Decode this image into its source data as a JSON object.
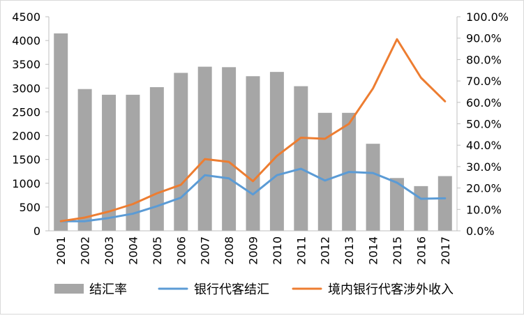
{
  "chart_data": {
    "type": "bar",
    "categories": [
      "2001",
      "2002",
      "2003",
      "2004",
      "2005",
      "2006",
      "2007",
      "2008",
      "2009",
      "2010",
      "2011",
      "2012",
      "2013",
      "2014",
      "2015",
      "2016",
      "2017"
    ],
    "series": [
      {
        "name": "结汇率",
        "type": "bar",
        "axis": "left",
        "color": "#A6A6A6",
        "values": [
          4150,
          2980,
          2860,
          2860,
          3020,
          3320,
          3450,
          3440,
          3250,
          3340,
          3040,
          2480,
          2480,
          1830,
          1110,
          940,
          1150
        ]
      },
      {
        "name": "银行代客结汇",
        "type": "line",
        "axis": "right",
        "color": "#5B9BD5",
        "values": [
          0.045,
          0.045,
          0.06,
          0.08,
          0.115,
          0.155,
          0.26,
          0.245,
          0.17,
          0.26,
          0.29,
          0.235,
          0.275,
          0.27,
          0.225,
          0.15,
          0.152
        ]
      },
      {
        "name": "境内银行代客涉外收入",
        "type": "line",
        "axis": "right",
        "color": "#ED7D31",
        "values": [
          0.045,
          0.062,
          0.09,
          0.125,
          0.175,
          0.215,
          0.335,
          0.322,
          0.232,
          0.35,
          0.435,
          0.43,
          0.5,
          0.665,
          0.895,
          0.715,
          0.605
        ]
      }
    ],
    "y_left": {
      "ylim": [
        0,
        4500
      ],
      "ticks": [
        "0",
        "500",
        "1000",
        "1500",
        "2000",
        "2500",
        "3000",
        "3500",
        "4000",
        "4500"
      ]
    },
    "y_right": {
      "ylim": [
        0,
        1.0
      ],
      "ticks": [
        "0.0%",
        "10.0%",
        "20.0%",
        "30.0%",
        "40.0%",
        "50.0%",
        "60.0%",
        "70.0%",
        "80.0%",
        "90.0%",
        "100.0%"
      ]
    },
    "grid": false,
    "legend_position": "bottom",
    "x_tick_rotation": "vertical"
  },
  "legend": [
    {
      "label": "结汇率",
      "marker": "box",
      "color": "#A6A6A6"
    },
    {
      "label": "银行代客结汇",
      "marker": "line",
      "color": "#5B9BD5"
    },
    {
      "label": "境内银行代客涉外收入",
      "marker": "line",
      "color": "#ED7D31"
    }
  ],
  "colors": {
    "axis": "#BFBFBF",
    "border": "#D9D9D9"
  }
}
